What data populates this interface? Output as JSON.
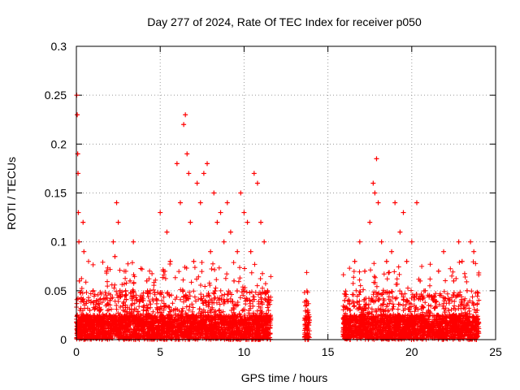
{
  "chart_data": {
    "type": "scatter",
    "title": "Day 277 of 2024, Rate Of TEC Index for receiver p050",
    "xlabel": "GPS time / hours",
    "ylabel": "ROTI / TECUs",
    "xlim": [
      0,
      25
    ],
    "ylim": [
      0,
      0.3
    ],
    "x_ticks": [
      "0",
      "5",
      "10",
      "15",
      "20",
      "25"
    ],
    "y_ticks": [
      "0",
      "0.05",
      "0.1",
      "0.15",
      "0.2",
      "0.25",
      "0.3"
    ],
    "grid": true,
    "marker": "+",
    "color": "#ff0000",
    "series": [
      {
        "name": "ROTI",
        "x": [
          0.02,
          0.05,
          0.08,
          0.1,
          0.12,
          0.15,
          0.18,
          0.22,
          0.25,
          0.3,
          0.35,
          0.4,
          0.45,
          0.5,
          0.6,
          0.7,
          0.8,
          0.9,
          1.0,
          1.2,
          1.4,
          1.6,
          1.8,
          2.0,
          2.2,
          2.3,
          2.4,
          2.5,
          2.6,
          2.8,
          3.0,
          3.2,
          3.4,
          3.6,
          3.8,
          4.0,
          4.2,
          4.4,
          4.6,
          4.8,
          5.0,
          5.2,
          5.4,
          5.6,
          5.8,
          6.0,
          6.2,
          6.4,
          6.5,
          6.6,
          6.7,
          6.8,
          7.0,
          7.2,
          7.4,
          7.6,
          7.8,
          8.0,
          8.2,
          8.4,
          8.6,
          8.8,
          9.0,
          9.2,
          9.4,
          9.6,
          9.8,
          10.0,
          10.2,
          10.4,
          10.6,
          10.8,
          11.0,
          11.2,
          11.4,
          13.7,
          13.8,
          13.9,
          16.0,
          16.3,
          16.6,
          16.9,
          17.2,
          17.5,
          17.7,
          17.8,
          17.9,
          18.0,
          18.2,
          18.5,
          18.8,
          19.0,
          19.3,
          19.5,
          19.7,
          20.0,
          20.3,
          20.5,
          20.8,
          21.0,
          21.3,
          21.6,
          21.9,
          22.2,
          22.5,
          22.8,
          23.0,
          23.3,
          23.5,
          23.7,
          23.9
        ],
        "values": [
          0.25,
          0.23,
          0.19,
          0.17,
          0.13,
          0.1,
          0.06,
          0.03,
          0.02,
          0.01,
          0.015,
          0.12,
          0.09,
          0.02,
          0.01,
          0.02,
          0.03,
          0.015,
          0.05,
          0.04,
          0.03,
          0.02,
          0.07,
          0.04,
          0.1,
          0.085,
          0.14,
          0.12,
          0.05,
          0.03,
          0.02,
          0.06,
          0.1,
          0.04,
          0.02,
          0.03,
          0.06,
          0.05,
          0.02,
          0.04,
          0.13,
          0.07,
          0.11,
          0.08,
          0.03,
          0.18,
          0.14,
          0.22,
          0.23,
          0.19,
          0.17,
          0.12,
          0.08,
          0.16,
          0.14,
          0.17,
          0.18,
          0.09,
          0.15,
          0.12,
          0.13,
          0.1,
          0.14,
          0.11,
          0.06,
          0.09,
          0.15,
          0.13,
          0.12,
          0.09,
          0.17,
          0.16,
          0.12,
          0.1,
          0.05,
          0.04,
          0.03,
          0.02,
          0.04,
          0.03,
          0.08,
          0.1,
          0.07,
          0.12,
          0.16,
          0.15,
          0.185,
          0.14,
          0.1,
          0.08,
          0.09,
          0.14,
          0.11,
          0.13,
          0.08,
          0.1,
          0.14,
          0.06,
          0.05,
          0.03,
          0.04,
          0.07,
          0.09,
          0.03,
          0.06,
          0.1,
          0.08,
          0.05,
          0.1,
          0.09,
          0.03
        ]
      }
    ],
    "band_coverage_hours": [
      [
        0,
        11.6
      ],
      [
        13.6,
        13.9
      ],
      [
        15.9,
        24.0
      ]
    ]
  }
}
